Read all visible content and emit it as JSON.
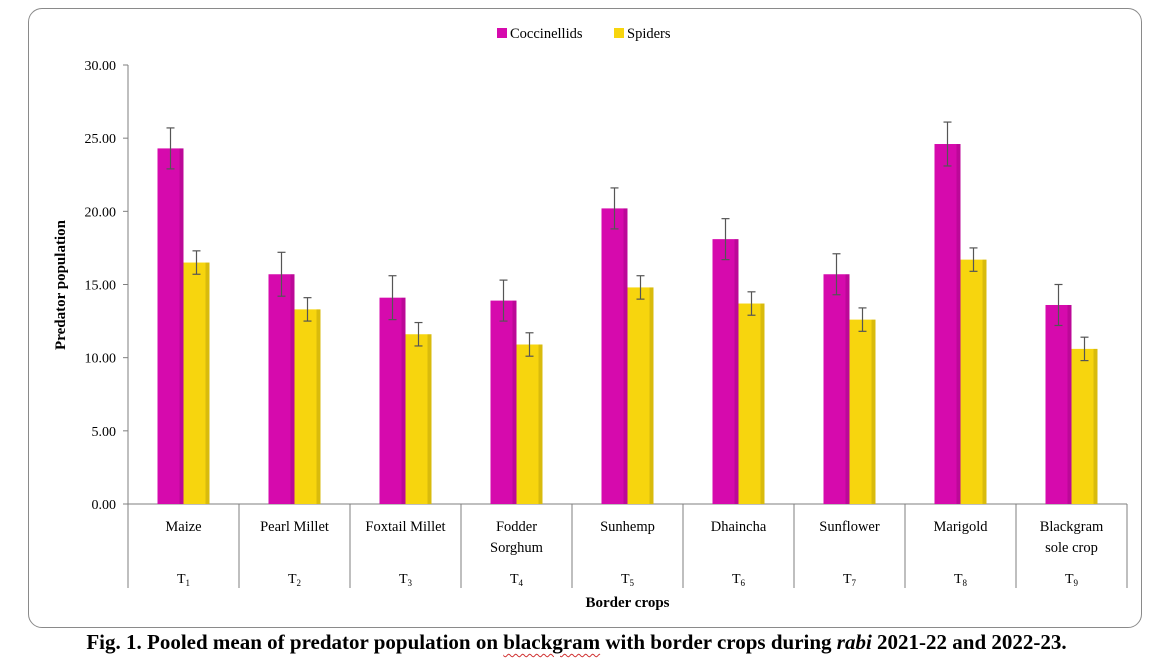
{
  "chart_data": {
    "type": "bar",
    "categories": [
      "Maize",
      "Pearl Millet",
      "Foxtail Millet",
      "Fodder Sorghum",
      "Sunhemp",
      "Dhaincha",
      "Sunflower",
      "Marigold",
      "Blackgram sole crop"
    ],
    "category_lines": [
      [
        "Maize"
      ],
      [
        "Pearl Millet"
      ],
      [
        "Foxtail Millet"
      ],
      [
        "Fodder",
        "Sorghum"
      ],
      [
        "Sunhemp"
      ],
      [
        "Dhaincha"
      ],
      [
        "Sunflower"
      ],
      [
        "Marigold"
      ],
      [
        "Blackgram",
        "sole crop"
      ]
    ],
    "treatment_codes": [
      {
        "base": "T",
        "sub": "1"
      },
      {
        "base": "T",
        "sub": "2"
      },
      {
        "base": "T",
        "sub": "3"
      },
      {
        "base": "T",
        "sub": "4"
      },
      {
        "base": "T",
        "sub": "5"
      },
      {
        "base": "T",
        "sub": "6"
      },
      {
        "base": "T",
        "sub": "7"
      },
      {
        "base": "T",
        "sub": "8"
      },
      {
        "base": "T",
        "sub": "9"
      }
    ],
    "series": [
      {
        "name": "Coccinellids",
        "color": "#d60aad",
        "values": [
          24.3,
          15.7,
          14.1,
          13.9,
          20.2,
          18.1,
          15.7,
          24.6,
          13.6
        ],
        "errors": [
          1.4,
          1.5,
          1.5,
          1.4,
          1.4,
          1.4,
          1.4,
          1.5,
          1.4
        ]
      },
      {
        "name": "Spiders",
        "color": "#f7d50e",
        "values": [
          16.5,
          13.3,
          11.6,
          10.9,
          14.8,
          13.7,
          12.6,
          16.7,
          10.6
        ],
        "errors": [
          0.8,
          0.8,
          0.8,
          0.8,
          0.8,
          0.8,
          0.8,
          0.8,
          0.8
        ]
      }
    ],
    "yticks": [
      "0.00",
      "5.00",
      "10.00",
      "15.00",
      "20.00",
      "25.00",
      "30.00"
    ],
    "ylim": [
      0,
      30
    ],
    "xlabel": "Border crops",
    "ylabel": "Predator population",
    "legend_position": "top-center",
    "grid": false
  },
  "caption": {
    "part1": "Fig. 1. Pooled mean of predator population on ",
    "part2": "blackgram",
    "part3": " with border crops during ",
    "part4": "rabi",
    "part5": " 2021-22 and 2022-23."
  }
}
